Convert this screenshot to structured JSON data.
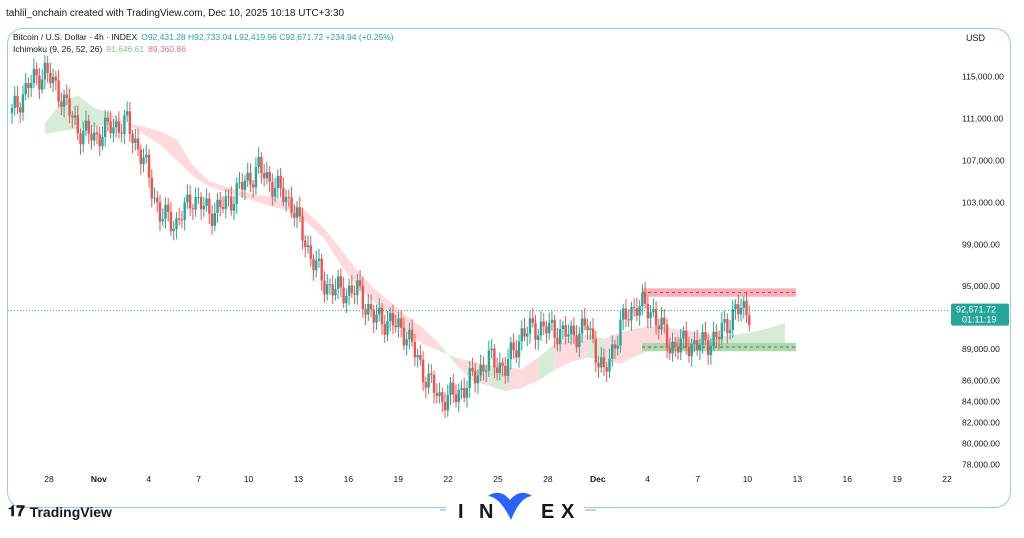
{
  "header": {
    "created_by": "tahlil_onchain created with TradingView.com, Dec 10, 2025 10:18 UTC+3:30"
  },
  "legend": {
    "symbol": "Bitcoin / U.S. Dollar · 4h · INDEX",
    "ohlc": "O92,431.28 H92,733.04 L92,419.96 C92,671.72 +234.94 (+0.25%)",
    "indicator": "Ichimoku (9, 26, 52, 26)",
    "indicator_val1": "91,646.61",
    "indicator_val2": "89,360.86"
  },
  "axis": {
    "currency": "USD",
    "y_ticks": [
      "115,000.00",
      "111,000.00",
      "107,000.00",
      "103,000.00",
      "99,000.00",
      "95,000.00",
      "89,000.00",
      "86,000.00",
      "84,000.00",
      "82,000.00",
      "80,000.00",
      "78,000.00"
    ],
    "x_ticks": [
      "28",
      "Nov",
      "4",
      "7",
      "10",
      "13",
      "16",
      "19",
      "22",
      "25",
      "28",
      "Dec",
      "4",
      "7",
      "10",
      "13",
      "16",
      "19",
      "22"
    ]
  },
  "price_tag": {
    "price": "92,671.72",
    "countdown": "01:11:19"
  },
  "branding": {
    "tradingview": "TradingView",
    "watermark_letters": [
      "I",
      "N",
      "V",
      "E",
      "X"
    ]
  },
  "colors": {
    "up": "#26a69a",
    "down": "#ef5350",
    "cloud_bull": "#c8e6c9",
    "cloud_bear": "#ffcdd2",
    "price_tag": "#26a69a",
    "frame": "#9ec7ef",
    "watermark_blue": "#2962ff"
  },
  "chart_data": {
    "type": "line",
    "title": "Bitcoin / U.S. Dollar · 4h · INDEX",
    "ylim": [
      77000,
      118000
    ],
    "x_labels": [
      "28",
      "Nov",
      "4",
      "7",
      "10",
      "13",
      "16",
      "19",
      "22",
      "25",
      "28",
      "Dec",
      "4",
      "7",
      "10",
      "13",
      "16",
      "19",
      "22"
    ],
    "series": [
      {
        "name": "Bitcoin / U.S. Dollar",
        "x": [
          "Oct 26",
          "Oct 27",
          "Oct 28",
          "Oct 29",
          "Oct 30",
          "Oct 31",
          "Nov 1",
          "Nov 2",
          "Nov 3",
          "Nov 4",
          "Nov 5",
          "Nov 6",
          "Nov 7",
          "Nov 8",
          "Nov 9",
          "Nov 10",
          "Nov 11",
          "Nov 12",
          "Nov 13",
          "Nov 14",
          "Nov 15",
          "Nov 16",
          "Nov 17",
          "Nov 18",
          "Nov 19",
          "Nov 20",
          "Nov 21",
          "Nov 22",
          "Nov 23",
          "Nov 24",
          "Nov 25",
          "Nov 26",
          "Nov 27",
          "Nov 28",
          "Nov 29",
          "Nov 30",
          "Dec 1",
          "Dec 2",
          "Dec 3",
          "Dec 4",
          "Dec 5",
          "Dec 6",
          "Dec 7",
          "Dec 8",
          "Dec 9",
          "Dec 10"
        ],
        "values": [
          111500,
          114200,
          115500,
          113200,
          110000,
          109200,
          110200,
          110500,
          107000,
          101800,
          101000,
          103500,
          102000,
          102800,
          104600,
          106200,
          104500,
          102900,
          98500,
          95200,
          94500,
          94600,
          92000,
          91600,
          90500,
          86800,
          84300,
          84600,
          86200,
          88000,
          87200,
          90500,
          91100,
          90800,
          90300,
          91200,
          86500,
          91300,
          93300,
          92500,
          89300,
          89500,
          89400,
          90300,
          92700,
          92671
        ]
      }
    ],
    "ichimoku_cloud_upper": [
      110500,
      112500,
      113200,
      112000,
      111500,
      110500,
      109500,
      108500,
      107000,
      105500,
      104500,
      104000,
      103500,
      103000,
      102500,
      102200,
      101000,
      99500,
      97000,
      95000,
      93500,
      92000,
      90500,
      89500,
      88800,
      88200,
      87800,
      87500,
      87300,
      87100,
      88200,
      89500,
      90200,
      90400,
      90000,
      90600,
      91000,
      91200,
      91000,
      90800,
      90500,
      90200,
      90400,
      90600,
      91000,
      91500
    ],
    "ichimoku_cloud_lower": [
      109500,
      109800,
      110000,
      110200,
      110400,
      110600,
      110200,
      109800,
      109000,
      106500,
      105000,
      104500,
      104000,
      103700,
      103500,
      103000,
      102000,
      100500,
      98500,
      96500,
      94800,
      93500,
      92200,
      91000,
      89500,
      87500,
      86000,
      85500,
      85000,
      85300,
      86000,
      87000,
      87800,
      88200,
      88000,
      87600,
      88400,
      89000,
      89300,
      89400,
      89300,
      89100,
      89200,
      89200,
      89200,
      89200
    ],
    "zones": [
      {
        "name": "resistance",
        "from": 94000,
        "to": 94800
      },
      {
        "name": "support",
        "from": 88800,
        "to": 89600
      }
    ],
    "current_price": 92671.72
  }
}
